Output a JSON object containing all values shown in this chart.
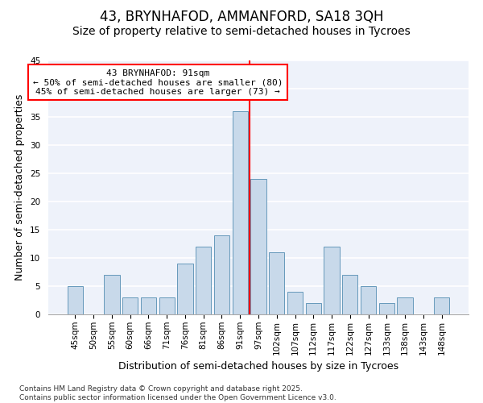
{
  "title1": "43, BRYNHAFOD, AMMANFORD, SA18 3QH",
  "title2": "Size of property relative to semi-detached houses in Tycroes",
  "xlabel": "Distribution of semi-detached houses by size in Tycroes",
  "ylabel": "Number of semi-detached properties",
  "categories": [
    "45sqm",
    "50sqm",
    "55sqm",
    "60sqm",
    "66sqm",
    "71sqm",
    "76sqm",
    "81sqm",
    "86sqm",
    "91sqm",
    "97sqm",
    "102sqm",
    "107sqm",
    "112sqm",
    "117sqm",
    "122sqm",
    "127sqm",
    "133sqm",
    "138sqm",
    "143sqm",
    "148sqm"
  ],
  "values": [
    5,
    0,
    7,
    3,
    3,
    3,
    9,
    12,
    14,
    36,
    24,
    11,
    4,
    2,
    12,
    7,
    5,
    2,
    3,
    0,
    3
  ],
  "bar_color": "#c8d9ea",
  "bar_edge_color": "#6699bb",
  "vline_color": "red",
  "vline_x": 9.5,
  "annotation_text": "43 BRYNHAFOD: 91sqm\n← 50% of semi-detached houses are smaller (80)\n45% of semi-detached houses are larger (73) →",
  "ylim": [
    0,
    45
  ],
  "yticks": [
    0,
    5,
    10,
    15,
    20,
    25,
    30,
    35,
    40,
    45
  ],
  "background_color": "#eef2fa",
  "grid_color": "white",
  "footer": "Contains HM Land Registry data © Crown copyright and database right 2025.\nContains public sector information licensed under the Open Government Licence v3.0.",
  "title_fontsize": 12,
  "subtitle_fontsize": 10,
  "label_fontsize": 9,
  "tick_fontsize": 7.5,
  "footer_fontsize": 6.5,
  "annot_fontsize": 8
}
